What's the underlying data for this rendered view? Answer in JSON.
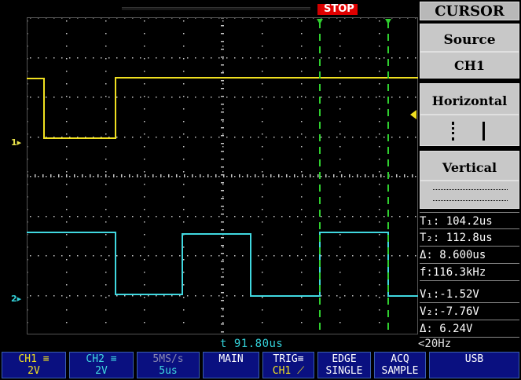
{
  "header": {
    "run_state": "STOP"
  },
  "cursor_menu": {
    "title": "CURSOR",
    "source_label": "Source",
    "source_value": "CH1",
    "horizontal_label": "Horizontal",
    "vertical_label": "Vertical"
  },
  "readouts": {
    "t1": "T₁: 104.2us",
    "t2": "T₂: 112.8us",
    "dt": "Δ: 8.600us",
    "freq": "f:116.3kHz",
    "v1": "V₁:-1.52V",
    "v2": "V₂:-7.76V",
    "dv": "Δ: 6.24V"
  },
  "status": {
    "trigger_time": "t 91.80us",
    "trigger_freq": "<20Hz"
  },
  "channel_markers": {
    "ch1": "1",
    "ch2": "2"
  },
  "bottom_bar": {
    "ch1": {
      "name": "CH1",
      "scale": "2V"
    },
    "ch2": {
      "name": "CH2",
      "scale": "2V"
    },
    "timebase": {
      "rate": "5MS/s",
      "scale": "5us"
    },
    "main": {
      "label": "MAIN"
    },
    "trig": {
      "label": "TRIG",
      "source": "CH1"
    },
    "edge": {
      "label": "EDGE",
      "mode": "SINGLE"
    },
    "acq": {
      "label": "ACQ",
      "mode": "SAMPLE"
    },
    "usb": {
      "label": "USB"
    }
  },
  "colors": {
    "ch1": "#f0e020",
    "ch2": "#40d8e0",
    "cursor": "#30d030",
    "stop": "#e00000",
    "grid": "#c8c8c8"
  }
}
